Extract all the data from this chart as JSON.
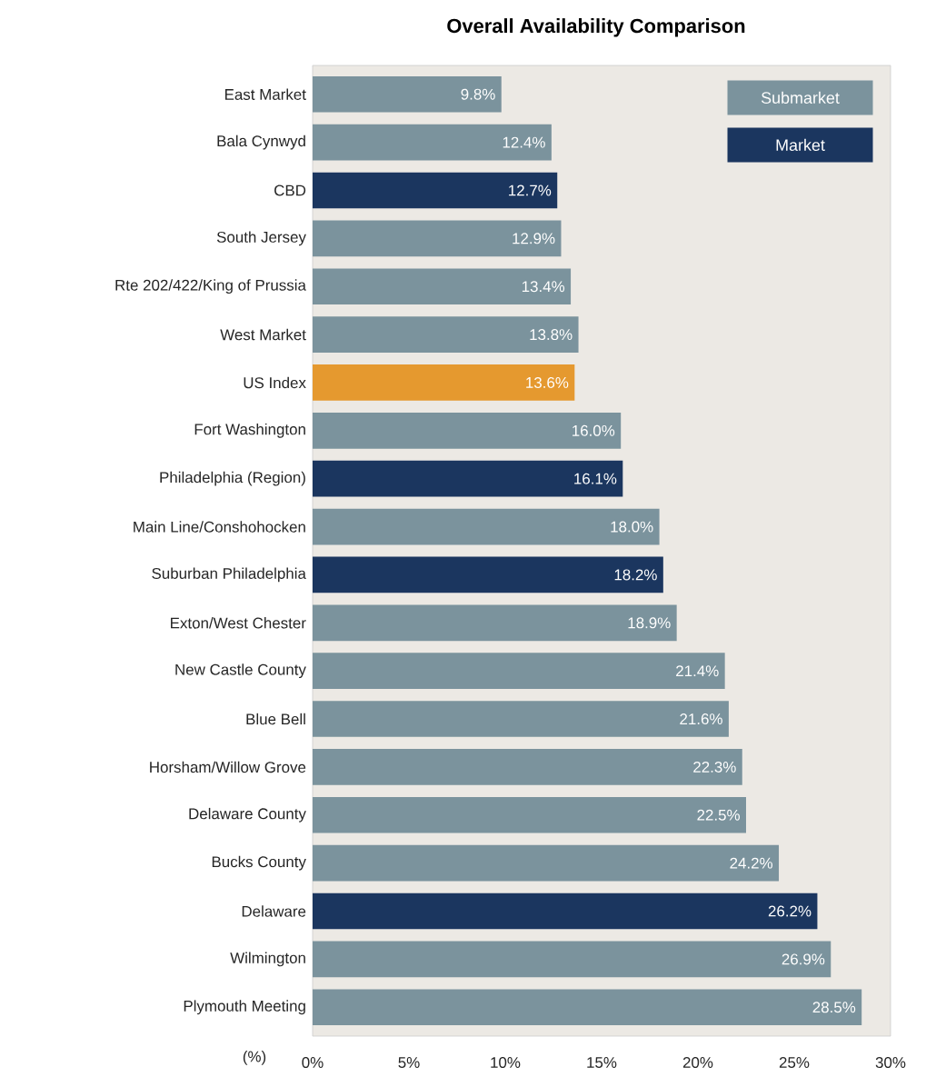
{
  "chart_data": {
    "type": "bar",
    "orientation": "horizontal",
    "title": "Overall Availability Comparison",
    "xlabel": "(%)",
    "categories": [
      "East Market",
      "Bala Cynwyd",
      "CBD",
      "South Jersey",
      "Rte 202/422/King of Prussia",
      "West Market",
      "US Index",
      "Fort Washington",
      "Philadelphia (Region)",
      "Main Line/Conshohocken",
      "Suburban Philadelphia",
      "Exton/West Chester",
      "New Castle County",
      "Blue Bell",
      "Horsham/Willow Grove",
      "Delaware County",
      "Bucks County",
      "Delaware",
      "Wilmington",
      "Plymouth Meeting"
    ],
    "series": [
      {
        "name": "Submarket",
        "color": "#7b939d",
        "values": [
          9.8,
          12.4,
          null,
          12.9,
          13.4,
          13.8,
          null,
          16.0,
          null,
          18.0,
          null,
          18.9,
          21.4,
          21.6,
          22.3,
          22.5,
          24.2,
          null,
          26.9,
          28.5
        ],
        "value_labels": [
          "9.8%",
          "12.4%",
          null,
          "12.9%",
          "13.4%",
          "13.8%",
          null,
          "16.0%",
          null,
          "18.0%",
          null,
          "18.9%",
          "21.4%",
          "21.6%",
          "22.3%",
          "22.5%",
          "24.2%",
          null,
          "26.9%",
          "28.5%"
        ]
      },
      {
        "name": "Market",
        "color": "#1b365f",
        "values": [
          null,
          null,
          12.7,
          null,
          null,
          null,
          null,
          null,
          16.1,
          null,
          18.2,
          null,
          null,
          null,
          null,
          null,
          null,
          26.2,
          null,
          null
        ],
        "value_labels": [
          null,
          null,
          "12.7%",
          null,
          null,
          null,
          null,
          null,
          "16.1%",
          null,
          "18.2%",
          null,
          null,
          null,
          null,
          null,
          null,
          "26.2%",
          null,
          null
        ]
      },
      {
        "color": "#e5992f",
        "values": [
          null,
          null,
          null,
          null,
          null,
          null,
          13.6,
          null,
          null,
          null,
          null,
          null,
          null,
          null,
          null,
          null,
          null,
          null,
          null,
          null
        ],
        "value_labels": [
          null,
          null,
          null,
          null,
          null,
          null,
          "13.6%",
          null,
          null,
          null,
          null,
          null,
          null,
          null,
          null,
          null,
          null,
          null,
          null,
          null
        ]
      }
    ],
    "xlim": [
      0,
      30
    ],
    "xticks": [
      {
        "value": 0,
        "label": "0%"
      },
      {
        "value": 5,
        "label": "5%"
      },
      {
        "value": 10,
        "label": "10%"
      },
      {
        "value": 15,
        "label": "15%"
      },
      {
        "value": 20,
        "label": "20%"
      },
      {
        "value": 25,
        "label": "25%"
      },
      {
        "value": 30,
        "label": "30%"
      }
    ],
    "grid": false,
    "legend": "top right"
  }
}
